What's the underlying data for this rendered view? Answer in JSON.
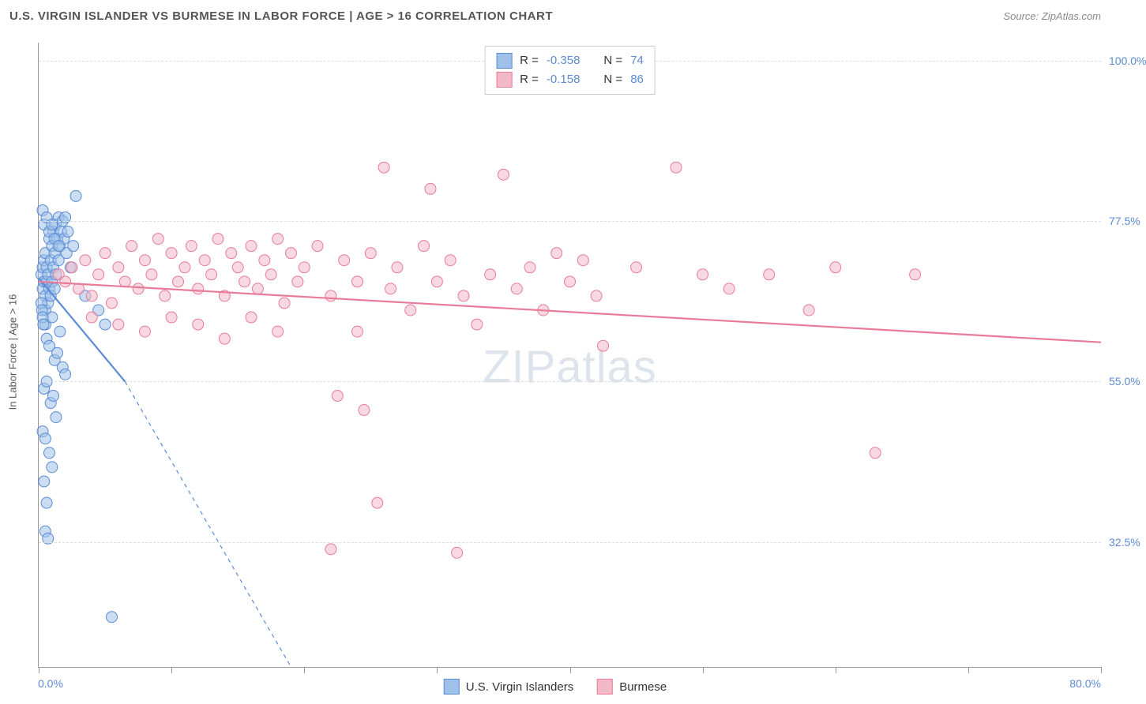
{
  "title": "U.S. VIRGIN ISLANDER VS BURMESE IN LABOR FORCE | AGE > 16 CORRELATION CHART",
  "source": "Source: ZipAtlas.com",
  "ylabel": "In Labor Force | Age > 16",
  "watermark_a": "ZIP",
  "watermark_b": "atlas",
  "chart": {
    "type": "scatter",
    "xlim": [
      0,
      80
    ],
    "ylim": [
      15,
      102.5
    ],
    "x_ticks": [
      0,
      10,
      20,
      30,
      40,
      50,
      60,
      70,
      80
    ],
    "y_gridlines": [
      32.5,
      55.0,
      77.5,
      100.0
    ],
    "y_tick_labels": [
      "32.5%",
      "55.0%",
      "77.5%",
      "100.0%"
    ],
    "x_min_label": "0.0%",
    "x_max_label": "80.0%",
    "background_color": "#ffffff",
    "grid_color": "#dddddd",
    "marker_radius": 7,
    "marker_opacity": 0.55,
    "line_width": 2.2,
    "series": [
      {
        "name": "U.S. Virgin Islanders",
        "color_fill": "#9ec1ea",
        "color_stroke": "#5b8bd4",
        "R": "-0.358",
        "N": "74",
        "trend": {
          "x1": 0,
          "y1": 69.5,
          "x2": 6.5,
          "y2": 55.0,
          "dash_to_x": 19,
          "dash_to_y": 15
        },
        "points": [
          [
            0.2,
            70
          ],
          [
            0.3,
            71
          ],
          [
            0.3,
            68
          ],
          [
            0.4,
            69
          ],
          [
            0.4,
            72
          ],
          [
            0.5,
            67
          ],
          [
            0.5,
            73
          ],
          [
            0.5,
            65
          ],
          [
            0.6,
            69
          ],
          [
            0.6,
            71
          ],
          [
            0.7,
            70
          ],
          [
            0.7,
            66
          ],
          [
            0.8,
            75
          ],
          [
            0.8,
            68
          ],
          [
            0.9,
            72
          ],
          [
            0.9,
            67
          ],
          [
            1.0,
            74
          ],
          [
            1.0,
            69
          ],
          [
            1.1,
            71
          ],
          [
            1.1,
            76
          ],
          [
            1.2,
            68
          ],
          [
            1.2,
            73
          ],
          [
            1.3,
            77
          ],
          [
            1.3,
            70
          ],
          [
            1.4,
            75
          ],
          [
            1.5,
            78
          ],
          [
            1.5,
            72
          ],
          [
            1.6,
            74
          ],
          [
            1.7,
            76
          ],
          [
            1.8,
            77.5
          ],
          [
            1.9,
            75
          ],
          [
            2.0,
            78
          ],
          [
            2.1,
            73
          ],
          [
            2.2,
            76
          ],
          [
            2.4,
            71
          ],
          [
            2.6,
            74
          ],
          [
            0.5,
            63
          ],
          [
            0.6,
            61
          ],
          [
            0.8,
            60
          ],
          [
            1.0,
            64
          ],
          [
            1.2,
            58
          ],
          [
            1.4,
            59
          ],
          [
            1.6,
            62
          ],
          [
            1.8,
            57
          ],
          [
            2.0,
            56
          ],
          [
            0.4,
            54
          ],
          [
            0.6,
            55
          ],
          [
            0.9,
            52
          ],
          [
            1.1,
            53
          ],
          [
            1.3,
            50
          ],
          [
            0.3,
            48
          ],
          [
            0.5,
            47
          ],
          [
            0.8,
            45
          ],
          [
            1.0,
            43
          ],
          [
            4.5,
            65
          ],
          [
            5.0,
            63
          ],
          [
            0.4,
            41
          ],
          [
            0.6,
            38
          ],
          [
            2.8,
            81
          ],
          [
            0.5,
            34
          ],
          [
            0.7,
            33
          ],
          [
            3.5,
            67
          ],
          [
            5.5,
            22
          ],
          [
            0.3,
            79
          ],
          [
            0.4,
            77
          ],
          [
            0.6,
            78
          ],
          [
            0.8,
            76
          ],
          [
            1.0,
            77
          ],
          [
            1.2,
            75
          ],
          [
            1.5,
            74
          ],
          [
            0.2,
            66
          ],
          [
            0.25,
            65
          ],
          [
            0.3,
            64
          ],
          [
            0.35,
            63
          ]
        ]
      },
      {
        "name": "Burmese",
        "color_fill": "#f4b9c8",
        "color_stroke": "#e87a9a",
        "R": "-0.158",
        "N": "86",
        "trend": {
          "x1": 0,
          "y1": 69.0,
          "x2": 80,
          "y2": 60.5
        },
        "points": [
          [
            1.5,
            70
          ],
          [
            2.0,
            69
          ],
          [
            2.5,
            71
          ],
          [
            3.0,
            68
          ],
          [
            3.5,
            72
          ],
          [
            4.0,
            67
          ],
          [
            4.5,
            70
          ],
          [
            5.0,
            73
          ],
          [
            5.5,
            66
          ],
          [
            6.0,
            71
          ],
          [
            6.5,
            69
          ],
          [
            7.0,
            74
          ],
          [
            7.5,
            68
          ],
          [
            8.0,
            72
          ],
          [
            8.5,
            70
          ],
          [
            9.0,
            75
          ],
          [
            9.5,
            67
          ],
          [
            10.0,
            73
          ],
          [
            10.5,
            69
          ],
          [
            11.0,
            71
          ],
          [
            11.5,
            74
          ],
          [
            12.0,
            68
          ],
          [
            12.5,
            72
          ],
          [
            13.0,
            70
          ],
          [
            13.5,
            75
          ],
          [
            14.0,
            67
          ],
          [
            14.5,
            73
          ],
          [
            15.0,
            71
          ],
          [
            15.5,
            69
          ],
          [
            16.0,
            74
          ],
          [
            16.5,
            68
          ],
          [
            17.0,
            72
          ],
          [
            17.5,
            70
          ],
          [
            18.0,
            75
          ],
          [
            18.5,
            66
          ],
          [
            19.0,
            73
          ],
          [
            19.5,
            69
          ],
          [
            20.0,
            71
          ],
          [
            21.0,
            74
          ],
          [
            22.0,
            67
          ],
          [
            23.0,
            72
          ],
          [
            24.0,
            69
          ],
          [
            25.0,
            73
          ],
          [
            26.0,
            85
          ],
          [
            26.5,
            68
          ],
          [
            27.0,
            71
          ],
          [
            28.0,
            65
          ],
          [
            29.0,
            74
          ],
          [
            29.5,
            82
          ],
          [
            30.0,
            69
          ],
          [
            31.0,
            72
          ],
          [
            32.0,
            67
          ],
          [
            33.0,
            63
          ],
          [
            34.0,
            70
          ],
          [
            35.0,
            84
          ],
          [
            36.0,
            68
          ],
          [
            37.0,
            71
          ],
          [
            38.0,
            65
          ],
          [
            39.0,
            73
          ],
          [
            40.0,
            69
          ],
          [
            41.0,
            72
          ],
          [
            42.0,
            67
          ],
          [
            48.0,
            85
          ],
          [
            22.5,
            53
          ],
          [
            24.5,
            51
          ],
          [
            24.0,
            62
          ],
          [
            25.5,
            38
          ],
          [
            31.5,
            31
          ],
          [
            22.0,
            31.5
          ],
          [
            42.5,
            60
          ],
          [
            45.0,
            71
          ],
          [
            50.0,
            70
          ],
          [
            52.0,
            68
          ],
          [
            55.0,
            70
          ],
          [
            58.0,
            65
          ],
          [
            60.0,
            71
          ],
          [
            63.0,
            45
          ],
          [
            66.0,
            70
          ],
          [
            4.0,
            64
          ],
          [
            6.0,
            63
          ],
          [
            8.0,
            62
          ],
          [
            10.0,
            64
          ],
          [
            12.0,
            63
          ],
          [
            14.0,
            61
          ],
          [
            16.0,
            64
          ],
          [
            18.0,
            62
          ]
        ]
      }
    ]
  },
  "legend_top": [
    {
      "swatch_fill": "#9ec1ea",
      "swatch_stroke": "#5b8bd4",
      "r_label": "R =",
      "r_val": "-0.358",
      "n_label": "N =",
      "n_val": "74"
    },
    {
      "swatch_fill": "#f4b9c8",
      "swatch_stroke": "#e87a9a",
      "r_label": "R =",
      "r_val": "-0.158",
      "n_label": "N =",
      "n_val": "86"
    }
  ],
  "legend_bottom": [
    {
      "swatch_fill": "#9ec1ea",
      "swatch_stroke": "#5b8bd4",
      "label": "U.S. Virgin Islanders"
    },
    {
      "swatch_fill": "#f4b9c8",
      "swatch_stroke": "#e87a9a",
      "label": "Burmese"
    }
  ]
}
